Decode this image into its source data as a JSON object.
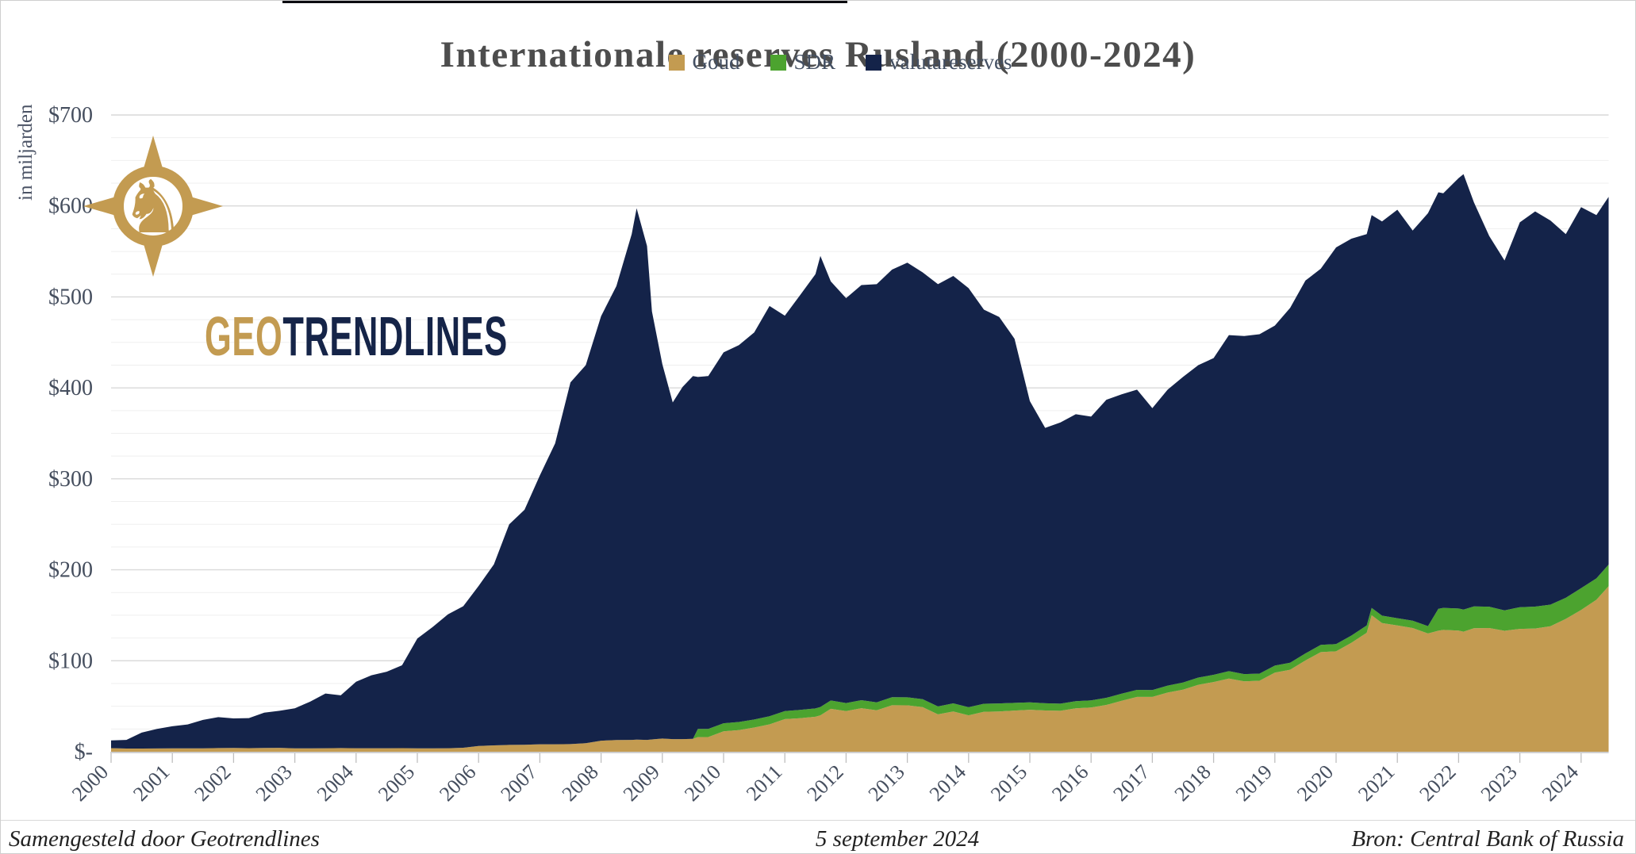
{
  "header": {
    "title": "Internationale reserves Rusland (2000-2024)"
  },
  "legend": {
    "items": [
      {
        "label": "Goud",
        "color": "#C39B51"
      },
      {
        "label": "SDR",
        "color": "#4CA32F"
      },
      {
        "label": "valutareserves",
        "color": "#142349"
      }
    ]
  },
  "y_axis": {
    "unit_label": "in miljarden",
    "ticks": [
      {
        "label": "$700",
        "value": 700
      },
      {
        "label": "$600",
        "value": 600
      },
      {
        "label": "$500",
        "value": 500
      },
      {
        "label": "$400",
        "value": 400
      },
      {
        "label": "$300",
        "value": 300
      },
      {
        "label": "$200",
        "value": 200
      },
      {
        "label": "$100",
        "value": 100
      },
      {
        "label": "$-",
        "value": 0
      }
    ]
  },
  "x_axis": {
    "years": [
      "2000",
      "2001",
      "2002",
      "2003",
      "2004",
      "2005",
      "2006",
      "2007",
      "2008",
      "2009",
      "2010",
      "2011",
      "2012",
      "2013",
      "2014",
      "2015",
      "2016",
      "2017",
      "2018",
      "2019",
      "2020",
      "2021",
      "2022",
      "2023",
      "2024"
    ]
  },
  "logo": {
    "text_gold": "GEO",
    "text_navy": "TRENDLINES",
    "knight_glyph": "♞"
  },
  "footer": {
    "left": "Samengesteld door Geotrendlines",
    "center": "5 september 2024",
    "right": "Bron: Central Bank of Russia"
  },
  "chart_data": {
    "type": "area",
    "stacked": true,
    "title": "Internationale reserves Rusland (2000-2024)",
    "ylabel": "in miljarden",
    "xlabel": "",
    "unit": "USD billions",
    "ylim": [
      0,
      700
    ],
    "x_range": [
      2000,
      2024.45
    ],
    "y_major_step": 100,
    "y_minor_step": 25,
    "grid": true,
    "legend_position": "top",
    "series_order": [
      "Goud",
      "SDR",
      "valutareserves"
    ],
    "colors": {
      "Goud": "#C39B51",
      "SDR": "#4CA32F",
      "valutareserves": "#142349"
    },
    "point_format": [
      "year_decimal",
      "Goud",
      "SDR",
      "valutareserves"
    ],
    "points": [
      [
        2000.0,
        3.9,
        0,
        8.5
      ],
      [
        2000.25,
        3.5,
        0,
        9.5
      ],
      [
        2000.5,
        3.5,
        0,
        17.5
      ],
      [
        2000.75,
        3.6,
        0,
        21.4
      ],
      [
        2001.0,
        3.7,
        0,
        24.3
      ],
      [
        2001.25,
        3.7,
        0,
        26.3
      ],
      [
        2001.5,
        3.7,
        0,
        31.3
      ],
      [
        2001.75,
        4.0,
        0,
        34.0
      ],
      [
        2002.0,
        4.1,
        0,
        32.5
      ],
      [
        2002.25,
        3.9,
        0,
        33.1
      ],
      [
        2002.5,
        4.1,
        0,
        38.9
      ],
      [
        2002.75,
        4.3,
        0,
        40.7
      ],
      [
        2003.0,
        3.7,
        0,
        44.1
      ],
      [
        2003.25,
        3.7,
        0,
        51.3
      ],
      [
        2003.5,
        3.8,
        0,
        60.2
      ],
      [
        2003.75,
        4.0,
        0,
        58.0
      ],
      [
        2004.0,
        3.8,
        0,
        73.1
      ],
      [
        2004.25,
        3.8,
        0,
        80.2
      ],
      [
        2004.5,
        3.8,
        0,
        84.2
      ],
      [
        2004.75,
        3.9,
        0,
        91.1
      ],
      [
        2005.0,
        3.7,
        0,
        120.8
      ],
      [
        2005.25,
        3.7,
        0,
        133.3
      ],
      [
        2005.5,
        3.8,
        0,
        147.2
      ],
      [
        2005.75,
        4.4,
        0,
        155.6
      ],
      [
        2006.0,
        6.3,
        0,
        175.9
      ],
      [
        2006.25,
        7.0,
        0,
        199.0
      ],
      [
        2006.5,
        7.5,
        0,
        242.5
      ],
      [
        2006.75,
        7.6,
        0,
        258.4
      ],
      [
        2007.0,
        8.2,
        0,
        295.5
      ],
      [
        2007.25,
        8.2,
        0,
        330.8
      ],
      [
        2007.5,
        8.4,
        0,
        397.6
      ],
      [
        2007.75,
        9.4,
        0,
        415.6
      ],
      [
        2008.0,
        12.1,
        0,
        466.7
      ],
      [
        2008.25,
        12.8,
        0,
        499.2
      ],
      [
        2008.5,
        13.0,
        0,
        556.0
      ],
      [
        2008.58,
        13.3,
        0,
        584.2
      ],
      [
        2008.75,
        13.0,
        0,
        543.0
      ],
      [
        2008.83,
        13.5,
        0,
        470.5
      ],
      [
        2009.0,
        14.5,
        0,
        411.5
      ],
      [
        2009.17,
        13.9,
        0,
        370.1
      ],
      [
        2009.33,
        13.9,
        0,
        387.1
      ],
      [
        2009.5,
        14.2,
        0,
        398.8
      ],
      [
        2009.58,
        16.0,
        9.0,
        387.0
      ],
      [
        2009.75,
        16.1,
        9.0,
        387.9
      ],
      [
        2010.0,
        22.4,
        8.9,
        407.7
      ],
      [
        2010.25,
        23.8,
        8.9,
        414.3
      ],
      [
        2010.5,
        26.6,
        8.8,
        425.6
      ],
      [
        2010.75,
        30.1,
        8.9,
        451.0
      ],
      [
        2011.0,
        35.8,
        8.9,
        434.7
      ],
      [
        2011.25,
        36.9,
        9.1,
        456.0
      ],
      [
        2011.5,
        38.4,
        9.2,
        477.4
      ],
      [
        2011.58,
        40.0,
        9.2,
        495.8
      ],
      [
        2011.75,
        47.2,
        9.1,
        460.7
      ],
      [
        2012.0,
        44.7,
        8.8,
        445.1
      ],
      [
        2012.25,
        47.9,
        8.8,
        456.3
      ],
      [
        2012.5,
        45.5,
        8.7,
        459.8
      ],
      [
        2012.75,
        51.1,
        8.9,
        470.0
      ],
      [
        2013.0,
        51.0,
        8.8,
        477.8
      ],
      [
        2013.25,
        49.1,
        8.7,
        469.2
      ],
      [
        2013.5,
        41.1,
        8.7,
        464.2
      ],
      [
        2013.75,
        44.3,
        8.9,
        469.8
      ],
      [
        2014.0,
        40.0,
        8.9,
        460.7
      ],
      [
        2014.25,
        43.9,
        8.8,
        433.3
      ],
      [
        2014.5,
        44.3,
        8.8,
        424.9
      ],
      [
        2014.75,
        45.2,
        8.5,
        400.3
      ],
      [
        2015.0,
        46.1,
        8.2,
        331.2
      ],
      [
        2015.25,
        45.3,
        8.0,
        302.7
      ],
      [
        2015.5,
        45.0,
        7.8,
        309.2
      ],
      [
        2015.75,
        47.7,
        7.9,
        315.4
      ],
      [
        2016.0,
        48.6,
        7.9,
        311.9
      ],
      [
        2016.25,
        51.4,
        7.9,
        327.7
      ],
      [
        2016.5,
        56.0,
        7.8,
        329.2
      ],
      [
        2016.75,
        60.2,
        7.8,
        330.0
      ],
      [
        2017.0,
        60.2,
        7.6,
        309.9
      ],
      [
        2017.25,
        65.0,
        7.7,
        325.3
      ],
      [
        2017.5,
        68.2,
        7.8,
        336.0
      ],
      [
        2017.75,
        73.6,
        7.9,
        343.5
      ],
      [
        2018.0,
        76.6,
        8.0,
        348.1
      ],
      [
        2018.25,
        80.5,
        8.1,
        369.4
      ],
      [
        2018.5,
        77.4,
        7.9,
        371.7
      ],
      [
        2018.75,
        78.0,
        7.9,
        373.1
      ],
      [
        2019.0,
        86.9,
        7.8,
        373.8
      ],
      [
        2019.25,
        90.1,
        7.8,
        390.1
      ],
      [
        2019.5,
        100.3,
        7.8,
        409.9
      ],
      [
        2019.75,
        109.5,
        7.9,
        413.6
      ],
      [
        2020.0,
        110.4,
        7.9,
        436.1
      ],
      [
        2020.25,
        119.8,
        7.9,
        436.3
      ],
      [
        2020.5,
        130.8,
        8.0,
        430.2
      ],
      [
        2020.58,
        150.0,
        8.1,
        431.9
      ],
      [
        2020.75,
        141.5,
        8.1,
        433.4
      ],
      [
        2021.0,
        138.8,
        8.0,
        449.0
      ],
      [
        2021.25,
        136.0,
        8.0,
        429.0
      ],
      [
        2021.5,
        130.0,
        8.1,
        453.9
      ],
      [
        2021.67,
        133.0,
        24.2,
        457.8
      ],
      [
        2021.75,
        133.9,
        24.2,
        455.9
      ],
      [
        2022.0,
        133.1,
        24.3,
        473.2
      ],
      [
        2022.08,
        132.0,
        24.3,
        478.7
      ],
      [
        2022.25,
        135.7,
        24.1,
        444.2
      ],
      [
        2022.5,
        136.0,
        23.4,
        407.6
      ],
      [
        2022.75,
        132.9,
        22.5,
        384.6
      ],
      [
        2023.0,
        135.0,
        23.9,
        423.1
      ],
      [
        2023.25,
        135.5,
        24.0,
        434.5
      ],
      [
        2023.5,
        138.0,
        23.7,
        422.3
      ],
      [
        2023.75,
        146.0,
        23.2,
        399.8
      ],
      [
        2024.0,
        155.9,
        23.9,
        418.8
      ],
      [
        2024.25,
        167.0,
        23.6,
        399.4
      ],
      [
        2024.45,
        182.0,
        23.7,
        404.3
      ]
    ]
  }
}
